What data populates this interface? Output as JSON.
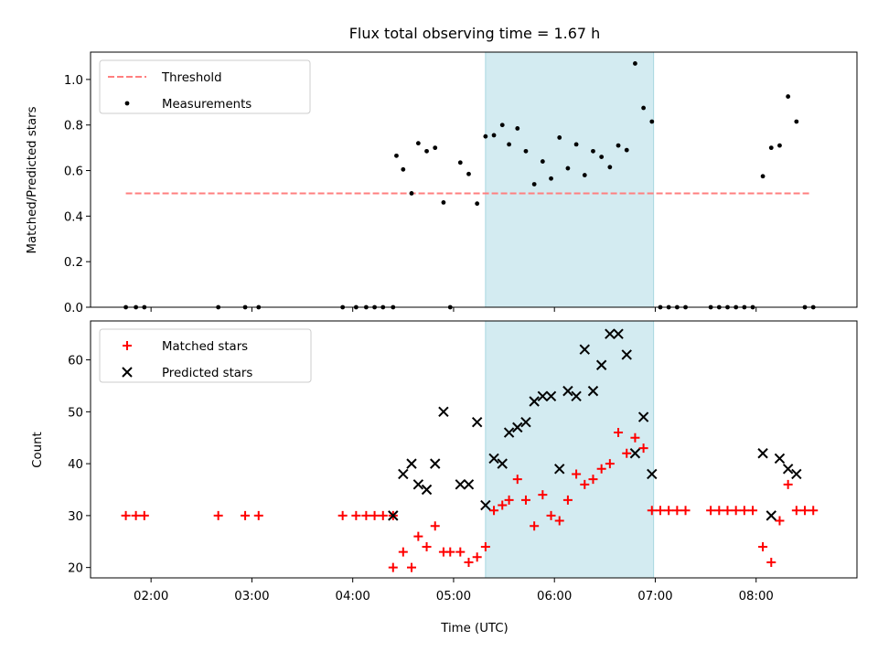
{
  "chart_data": [
    {
      "type": "scatter",
      "title": "Flux total observing time = 1.67 h",
      "xlabel": "",
      "ylabel": "Matched/Predicted stars",
      "ylim": [
        0,
        1.12
      ],
      "yticks": [
        "0.0",
        "0.2",
        "0.4",
        "0.6",
        "0.8",
        "1.0"
      ],
      "grid": false,
      "legend_position": "upper-left",
      "shaded_interval": [
        "05:19",
        "06:59"
      ],
      "shade_color": "#d3ebf1",
      "series": [
        {
          "name": "Threshold",
          "kind": "dashed-line",
          "color": "#ff7f7f",
          "x": [
            "01:45",
            "08:33"
          ],
          "y": [
            0.5,
            0.5
          ]
        },
        {
          "name": "Measurements",
          "kind": "points",
          "color": "#000000",
          "points": [
            [
              "01:45",
              0
            ],
            [
              "01:51",
              0
            ],
            [
              "01:56",
              0
            ],
            [
              "02:40",
              0
            ],
            [
              "02:56",
              0
            ],
            [
              "03:04",
              0
            ],
            [
              "03:54",
              0
            ],
            [
              "04:02",
              0
            ],
            [
              "04:08",
              0
            ],
            [
              "04:13",
              0
            ],
            [
              "04:18",
              0
            ],
            [
              "04:24",
              0
            ],
            [
              "04:26",
              0.665
            ],
            [
              "04:30",
              0.605
            ],
            [
              "04:35",
              0.5
            ],
            [
              "04:39",
              0.72
            ],
            [
              "04:44",
              0.685
            ],
            [
              "04:49",
              0.7
            ],
            [
              "04:54",
              0.46
            ],
            [
              "04:58",
              0
            ],
            [
              "05:04",
              0.635
            ],
            [
              "05:09",
              0.585
            ],
            [
              "05:14",
              0.455
            ],
            [
              "05:19",
              0.75
            ],
            [
              "05:24",
              0.755
            ],
            [
              "05:29",
              0.8
            ],
            [
              "05:33",
              0.715
            ],
            [
              "05:38",
              0.785
            ],
            [
              "05:43",
              0.685
            ],
            [
              "05:48",
              0.54
            ],
            [
              "05:53",
              0.64
            ],
            [
              "05:58",
              0.565
            ],
            [
              "06:03",
              0.745
            ],
            [
              "06:08",
              0.61
            ],
            [
              "06:13",
              0.715
            ],
            [
              "06:18",
              0.58
            ],
            [
              "06:23",
              0.685
            ],
            [
              "06:28",
              0.66
            ],
            [
              "06:33",
              0.615
            ],
            [
              "06:38",
              0.71
            ],
            [
              "06:43",
              0.69
            ],
            [
              "06:48",
              1.07
            ],
            [
              "06:53",
              0.875
            ],
            [
              "06:58",
              0.815
            ],
            [
              "07:03",
              0
            ],
            [
              "07:08",
              0
            ],
            [
              "07:13",
              0
            ],
            [
              "07:18",
              0
            ],
            [
              "07:33",
              0
            ],
            [
              "07:38",
              0
            ],
            [
              "07:43",
              0
            ],
            [
              "07:48",
              0
            ],
            [
              "07:53",
              0
            ],
            [
              "07:58",
              0
            ],
            [
              "08:04",
              0.575
            ],
            [
              "08:09",
              0.7
            ],
            [
              "08:14",
              0.71
            ],
            [
              "08:19",
              0.925
            ],
            [
              "08:24",
              0.815
            ],
            [
              "08:29",
              0
            ],
            [
              "08:34",
              0
            ]
          ]
        }
      ]
    },
    {
      "type": "scatter",
      "title": "",
      "xlabel": "Time (UTC)",
      "ylabel": "Count",
      "ylim": [
        18,
        67.5
      ],
      "yticks": [
        "20",
        "30",
        "40",
        "50",
        "60"
      ],
      "xticks": [
        "02:00",
        "03:00",
        "04:00",
        "05:00",
        "06:00",
        "07:00",
        "08:00"
      ],
      "grid": false,
      "legend_position": "upper-left",
      "shaded_interval": [
        "05:19",
        "06:59"
      ],
      "shade_color": "#d3ebf1",
      "series": [
        {
          "name": "Matched stars",
          "kind": "plus-markers",
          "color": "#ff0000",
          "points": [
            [
              "01:45",
              30
            ],
            [
              "01:51",
              30
            ],
            [
              "01:56",
              30
            ],
            [
              "02:40",
              30
            ],
            [
              "02:56",
              30
            ],
            [
              "03:04",
              30
            ],
            [
              "03:54",
              30
            ],
            [
              "04:02",
              30
            ],
            [
              "04:08",
              30
            ],
            [
              "04:13",
              30
            ],
            [
              "04:18",
              30
            ],
            [
              "04:24",
              30
            ],
            [
              "04:24",
              20
            ],
            [
              "04:30",
              23
            ],
            [
              "04:35",
              20
            ],
            [
              "04:39",
              26
            ],
            [
              "04:44",
              24
            ],
            [
              "04:49",
              28
            ],
            [
              "04:54",
              23
            ],
            [
              "04:58",
              23
            ],
            [
              "05:04",
              23
            ],
            [
              "05:09",
              21
            ],
            [
              "05:14",
              22
            ],
            [
              "05:19",
              24
            ],
            [
              "05:24",
              31
            ],
            [
              "05:29",
              32
            ],
            [
              "05:33",
              33
            ],
            [
              "05:38",
              37
            ],
            [
              "05:43",
              33
            ],
            [
              "05:48",
              28
            ],
            [
              "05:53",
              34
            ],
            [
              "05:58",
              30
            ],
            [
              "06:03",
              29
            ],
            [
              "06:08",
              33
            ],
            [
              "06:13",
              38
            ],
            [
              "06:18",
              36
            ],
            [
              "06:23",
              37
            ],
            [
              "06:28",
              39
            ],
            [
              "06:33",
              40
            ],
            [
              "06:38",
              46
            ],
            [
              "06:43",
              42
            ],
            [
              "06:48",
              45
            ],
            [
              "06:53",
              43
            ],
            [
              "06:58",
              31
            ],
            [
              "07:03",
              31
            ],
            [
              "07:08",
              31
            ],
            [
              "07:13",
              31
            ],
            [
              "07:18",
              31
            ],
            [
              "07:33",
              31
            ],
            [
              "07:38",
              31
            ],
            [
              "07:43",
              31
            ],
            [
              "07:48",
              31
            ],
            [
              "07:53",
              31
            ],
            [
              "07:58",
              31
            ],
            [
              "08:04",
              24
            ],
            [
              "08:09",
              21
            ],
            [
              "08:14",
              29
            ],
            [
              "08:19",
              36
            ],
            [
              "08:24",
              31
            ],
            [
              "08:29",
              31
            ],
            [
              "08:34",
              31
            ]
          ]
        },
        {
          "name": "Predicted stars",
          "kind": "x-markers",
          "color": "#000000",
          "points": [
            [
              "04:24",
              30
            ],
            [
              "04:30",
              38
            ],
            [
              "04:35",
              40
            ],
            [
              "04:39",
              36
            ],
            [
              "04:44",
              35
            ],
            [
              "04:49",
              40
            ],
            [
              "04:54",
              50
            ],
            [
              "05:04",
              36
            ],
            [
              "05:09",
              36
            ],
            [
              "05:14",
              48
            ],
            [
              "05:19",
              32
            ],
            [
              "05:24",
              41
            ],
            [
              "05:29",
              40
            ],
            [
              "05:33",
              46
            ],
            [
              "05:38",
              47
            ],
            [
              "05:43",
              48
            ],
            [
              "05:48",
              52
            ],
            [
              "05:53",
              53
            ],
            [
              "05:58",
              53
            ],
            [
              "06:03",
              39
            ],
            [
              "06:08",
              54
            ],
            [
              "06:13",
              53
            ],
            [
              "06:18",
              62
            ],
            [
              "06:23",
              54
            ],
            [
              "06:28",
              59
            ],
            [
              "06:33",
              65
            ],
            [
              "06:38",
              65
            ],
            [
              "06:43",
              61
            ],
            [
              "06:48",
              42
            ],
            [
              "06:53",
              49
            ],
            [
              "06:58",
              38
            ],
            [
              "08:04",
              42
            ],
            [
              "08:09",
              30
            ],
            [
              "08:14",
              41
            ],
            [
              "08:19",
              39
            ],
            [
              "08:24",
              38
            ]
          ]
        }
      ]
    }
  ]
}
